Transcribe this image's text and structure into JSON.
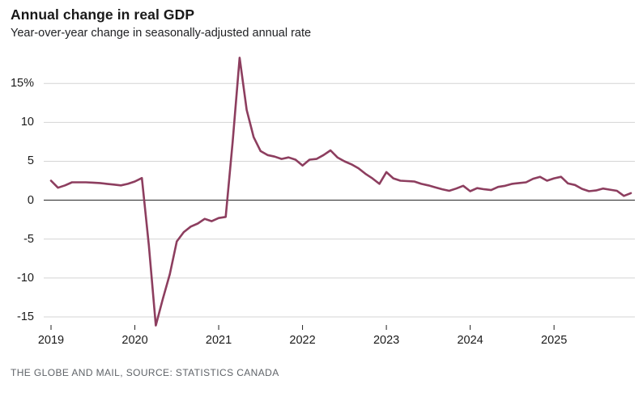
{
  "header": {
    "title": "Annual change in real GDP",
    "subtitle": "Year-over-year change in seasonally-adjusted annual rate"
  },
  "footer": {
    "source": "THE GLOBE AND MAIL, SOURCE: STATISTICS CANADA"
  },
  "colors": {
    "line": "#8d3e5f",
    "grid": "#d4d4d4",
    "zero_line": "#1a1a1a",
    "tick": "#222222",
    "axis_label": "#1a1a1a",
    "source_text": "#5f6368"
  },
  "chart_data": {
    "type": "line",
    "title": "Annual change in real GDP",
    "subtitle": "Year-over-year change in seasonally-adjusted annual rate",
    "unit": "percent",
    "frequency": "monthly",
    "grid": "horizontal",
    "legend": "none",
    "ylim": [
      -17.5,
      19.5
    ],
    "y_ticks": [
      15,
      10,
      5,
      0,
      -5,
      -10,
      -15
    ],
    "y_tick_labels": [
      "15%",
      "10",
      "5",
      "0",
      "-5",
      "-10",
      "-15"
    ],
    "x_tick_labels": [
      "2019",
      "2020",
      "2021",
      "2022",
      "2023",
      "2024",
      "2025"
    ],
    "x_tick_month_index": [
      0,
      12,
      24,
      36,
      48,
      60,
      72
    ],
    "months": [
      "2019-01",
      "2019-02",
      "2019-03",
      "2019-04",
      "2019-05",
      "2019-06",
      "2019-07",
      "2019-08",
      "2019-09",
      "2019-10",
      "2019-11",
      "2019-12",
      "2020-01",
      "2020-02",
      "2020-03",
      "2020-04",
      "2020-05",
      "2020-06",
      "2020-07",
      "2020-08",
      "2020-09",
      "2020-10",
      "2020-11",
      "2020-12",
      "2021-01",
      "2021-02",
      "2021-03",
      "2021-04",
      "2021-05",
      "2021-06",
      "2021-07",
      "2021-08",
      "2021-09",
      "2021-10",
      "2021-11",
      "2021-12",
      "2022-01",
      "2022-02",
      "2022-03",
      "2022-04",
      "2022-05",
      "2022-06",
      "2022-07",
      "2022-08",
      "2022-09",
      "2022-10",
      "2022-11",
      "2022-12",
      "2023-01",
      "2023-02",
      "2023-03",
      "2023-04",
      "2023-05",
      "2023-06",
      "2023-07",
      "2023-08",
      "2023-09",
      "2023-10",
      "2023-11",
      "2023-12",
      "2024-01",
      "2024-02",
      "2024-03",
      "2024-04",
      "2024-05",
      "2024-06",
      "2024-07",
      "2024-08",
      "2024-09",
      "2024-10",
      "2024-11",
      "2024-12",
      "2025-01",
      "2025-02",
      "2025-03",
      "2025-04",
      "2025-05",
      "2025-06",
      "2025-07",
      "2025-08",
      "2025-09",
      "2025-10",
      "2025-11",
      "2025-12"
    ],
    "values": [
      2.5,
      1.6,
      1.9,
      2.3,
      2.3,
      2.3,
      2.25,
      2.2,
      2.1,
      2.0,
      1.9,
      2.1,
      2.4,
      2.85,
      -5.8,
      -16.1,
      -12.7,
      -9.5,
      -5.3,
      -4.1,
      -3.4,
      -3.0,
      -2.4,
      -2.7,
      -2.3,
      -2.15,
      7.5,
      18.3,
      11.6,
      8.1,
      6.3,
      5.8,
      5.6,
      5.3,
      5.5,
      5.2,
      4.45,
      5.2,
      5.3,
      5.8,
      6.4,
      5.5,
      5.0,
      4.6,
      4.1,
      3.4,
      2.8,
      2.1,
      3.6,
      2.8,
      2.5,
      2.45,
      2.4,
      2.1,
      1.9,
      1.65,
      1.4,
      1.2,
      1.5,
      1.85,
      1.15,
      1.55,
      1.4,
      1.3,
      1.7,
      1.85,
      2.1,
      2.2,
      2.3,
      2.75,
      3.0,
      2.5,
      2.8,
      3.0,
      2.15,
      1.95,
      1.45,
      1.15,
      1.25,
      1.5,
      1.35,
      1.2,
      0.55,
      0.9
    ],
    "source": "THE GLOBE AND MAIL, SOURCE: STATISTICS CANADA"
  }
}
